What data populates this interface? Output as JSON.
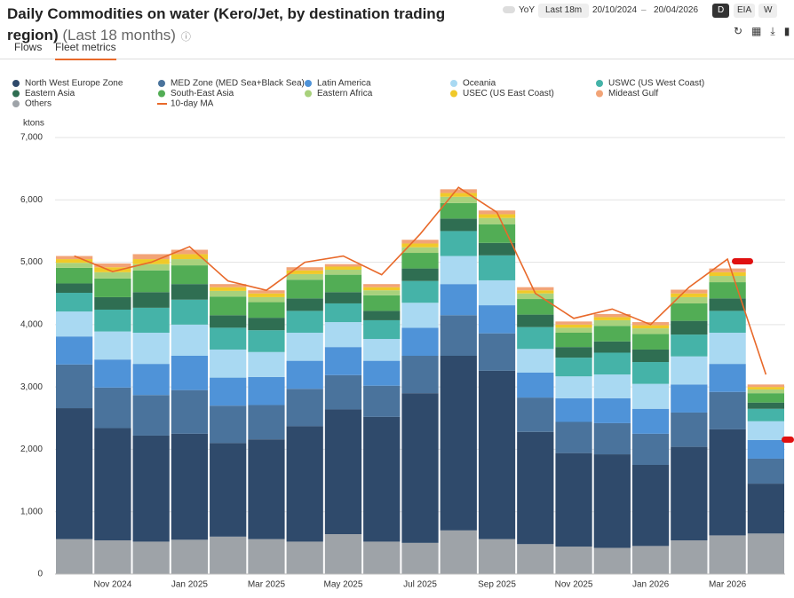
{
  "header": {
    "title": "Daily Commodities on water (Kero/Jet, by destination trading region)",
    "subtitle": "(Last 18 months)",
    "tabs": [
      "Flows",
      "Fleet metrics"
    ],
    "toggle": "YoY",
    "range": "Last 18m",
    "date_from": "20/10/2024",
    "date_to": "20/04/2026",
    "freq": [
      "D",
      "EIA",
      "W"
    ]
  },
  "chart_data": {
    "type": "bar",
    "stacked": true,
    "y_label": "ktons",
    "categories": [
      null,
      "Nov 2024",
      null,
      "Jan 2025",
      null,
      "Mar 2025",
      null,
      "May 2025",
      null,
      "Jul 2025",
      null,
      "Sep 2025",
      null,
      "Nov 2025",
      null,
      "Jan 2026",
      null,
      "Mar 2026",
      null
    ],
    "ylim": [
      0,
      7000
    ],
    "yticks": [
      0,
      {
        "value": 1000,
        "label": "1,000"
      },
      {
        "value": 2000,
        "label": "2,000"
      },
      {
        "value": 3000,
        "label": "3,000"
      },
      {
        "value": 4000,
        "label": "4,000"
      },
      {
        "value": 5000,
        "label": "5,000"
      },
      {
        "value": 6000,
        "label": "6,000"
      },
      {
        "value": 7000,
        "label": "7,000"
      }
    ],
    "grid": true,
    "series": [
      {
        "name": "Others",
        "color": "#9ea3a8",
        "values": [
          560,
          540,
          520,
          550,
          600,
          560,
          520,
          640,
          520,
          500,
          700,
          560,
          480,
          440,
          420,
          450,
          540,
          620,
          650
        ]
      },
      {
        "name": "North West Europe Zone",
        "color": "#2f4a6b",
        "values": [
          2100,
          1800,
          1700,
          1700,
          1500,
          1600,
          1850,
          2000,
          2000,
          2400,
          2800,
          2700,
          1800,
          1500,
          1500,
          1300,
          1500,
          1700,
          800
        ]
      },
      {
        "name": "MED Zone (MED Sea+Black Sea)",
        "color": "#4a739c",
        "values": [
          700,
          650,
          650,
          700,
          600,
          550,
          600,
          550,
          500,
          600,
          650,
          600,
          550,
          500,
          500,
          500,
          550,
          600,
          400
        ]
      },
      {
        "name": "Latin America",
        "color": "#4f93d8",
        "values": [
          450,
          450,
          500,
          550,
          450,
          450,
          450,
          450,
          400,
          450,
          500,
          450,
          400,
          380,
          400,
          400,
          450,
          450,
          300
        ]
      },
      {
        "name": "Oceania",
        "color": "#a9d9f2",
        "values": [
          400,
          450,
          500,
          500,
          450,
          400,
          450,
          400,
          350,
          400,
          450,
          400,
          380,
          350,
          380,
          400,
          450,
          500,
          300
        ]
      },
      {
        "name": "USWC (US West Coast)",
        "color": "#45b3a8",
        "values": [
          300,
          350,
          400,
          400,
          350,
          350,
          350,
          300,
          300,
          350,
          400,
          400,
          350,
          300,
          350,
          350,
          350,
          350,
          200
        ]
      },
      {
        "name": "Eastern Asia",
        "color": "#2f6e52",
        "values": [
          150,
          200,
          250,
          250,
          200,
          200,
          200,
          180,
          150,
          200,
          200,
          200,
          200,
          170,
          180,
          200,
          220,
          200,
          100
        ]
      },
      {
        "name": "South-East Asia",
        "color": "#52ad55",
        "values": [
          250,
          300,
          350,
          300,
          300,
          250,
          300,
          280,
          250,
          250,
          250,
          300,
          250,
          230,
          250,
          250,
          280,
          260,
          150
        ]
      },
      {
        "name": "Eastern Africa",
        "color": "#a8d17c",
        "values": [
          80,
          100,
          100,
          100,
          90,
          80,
          90,
          80,
          80,
          90,
          100,
          100,
          90,
          80,
          90,
          90,
          100,
          100,
          60
        ]
      },
      {
        "name": "USEC (US East Coast)",
        "color": "#f0c929",
        "values": [
          60,
          80,
          80,
          80,
          60,
          60,
          60,
          50,
          50,
          60,
          60,
          60,
          50,
          50,
          50,
          50,
          60,
          60,
          40
        ]
      },
      {
        "name": "Mideast Gulf",
        "color": "#f2a477",
        "values": [
          50,
          60,
          80,
          70,
          50,
          50,
          50,
          40,
          50,
          60,
          60,
          60,
          50,
          50,
          50,
          50,
          60,
          60,
          40
        ]
      }
    ],
    "line_series": {
      "name": "10-day MA",
      "color": "#e8692a",
      "values": [
        5100,
        4850,
        5000,
        5250,
        4700,
        4550,
        5000,
        5100,
        4800,
        5450,
        6200,
        5800,
        4500,
        4100,
        4250,
        4000,
        4600,
        5050,
        3200
      ]
    },
    "legend_order": [
      1,
      2,
      3,
      4,
      5,
      6,
      7,
      8,
      9,
      10,
      0
    ]
  }
}
